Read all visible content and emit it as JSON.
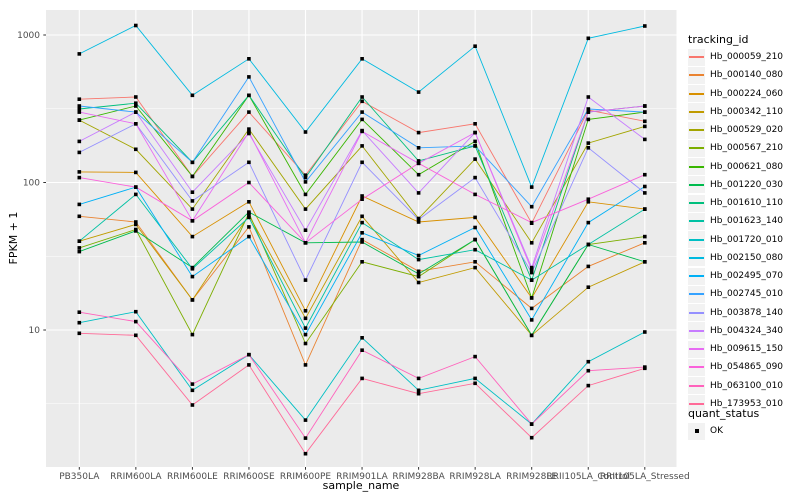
{
  "figure": {
    "panel_bg": "#EBEBEB",
    "grid_color": "#FFFFFF",
    "tick_label_color": "#4D4D4D",
    "point_color": "#000000"
  },
  "axes": {
    "y_title": "FPKM + 1",
    "x_title": "sample_name",
    "y_tick_labels": [
      "1000",
      "100",
      "10"
    ]
  },
  "legend": {
    "tracking_title": "tracking_id",
    "quant_title": "quant_status",
    "quant_items": [
      {
        "label": "OK",
        "marker": "black-filled-square"
      }
    ]
  },
  "chart_data": {
    "type": "line",
    "title": "",
    "xlabel": "sample_name",
    "ylabel": "FPKM + 1",
    "yscale": "log10",
    "ylim": [
      1.18,
      1480
    ],
    "y_major_gridlines": [
      10,
      100,
      1000
    ],
    "y_minor_gridlines": [
      3.162,
      31.62,
      316.2
    ],
    "grid": "on",
    "legend_position": "right",
    "point_marker": "small black filled square (quant_status = OK) at every sample",
    "categories": [
      "PB350LA",
      "RRIM600LA",
      "RRIM600LE",
      "RRIM600SE",
      "RRIM600PE",
      "RRIM901LA",
      "RRIM928BA",
      "RRIM928LA",
      "RRIM928LE",
      "RRII105LA_Control",
      "RRII105LA_Stressed"
    ],
    "series": [
      {
        "name": "Hb_000059_210",
        "color": "#F8766D",
        "values": [
          367,
          380,
          110,
          300,
          112,
          355,
          218,
          250,
          53,
          310,
          260
        ]
      },
      {
        "name": "Hb_000140_080",
        "color": "#EA8331",
        "values": [
          59,
          54,
          16,
          50,
          5.8,
          41,
          25,
          29,
          14,
          27,
          39
        ]
      },
      {
        "name": "Hb_000224_060",
        "color": "#D89000",
        "values": [
          118,
          117,
          43,
          74,
          13.5,
          81,
          54,
          58,
          16.5,
          74,
          66
        ]
      },
      {
        "name": "Hb_000342_110",
        "color": "#C09B00",
        "values": [
          40,
          52,
          16,
          60,
          12,
          59,
          21,
          26.5,
          9.2,
          19.5,
          29
        ]
      },
      {
        "name": "Hb_000529_020",
        "color": "#A3A500",
        "values": [
          265,
          168,
          66,
          230,
          66,
          177,
          57,
          144,
          39,
          185,
          240
        ]
      },
      {
        "name": "Hb_000567_210",
        "color": "#7CAE00",
        "values": [
          36,
          48,
          9.3,
          62,
          8.1,
          29,
          23,
          41,
          9.2,
          38,
          43
        ]
      },
      {
        "name": "Hb_000621_080",
        "color": "#39B600",
        "values": [
          265,
          330,
          110,
          390,
          83,
          268,
          113,
          190,
          16.5,
          268,
          300
        ]
      },
      {
        "name": "Hb_001220_030",
        "color": "#00BB4E",
        "values": [
          34,
          47,
          26.5,
          63,
          39,
          39.5,
          24,
          41,
          9.2,
          38,
          29
        ]
      },
      {
        "name": "Hb_001610_110",
        "color": "#00BF7D",
        "values": [
          315,
          345,
          137,
          390,
          108,
          380,
          140,
          177,
          21.8,
          300,
          330
        ]
      },
      {
        "name": "Hb_001623_140",
        "color": "#00C1A3",
        "values": [
          40,
          83,
          26,
          58,
          10.3,
          53.5,
          30,
          35,
          21.8,
          38,
          66
        ]
      },
      {
        "name": "Hb_001720_010",
        "color": "#00BFC4",
        "values": [
          11.2,
          13.3,
          3.9,
          6.8,
          2.45,
          8.85,
          3.9,
          4.7,
          2.3,
          6.1,
          9.7
        ]
      },
      {
        "name": "Hb_002150_080",
        "color": "#00BAE0",
        "values": [
          745,
          1160,
          390,
          690,
          220,
          690,
          410,
          840,
          93,
          950,
          1150
        ]
      },
      {
        "name": "Hb_002495_070",
        "color": "#00B0F6",
        "values": [
          71,
          93,
          23,
          43,
          9.3,
          45.6,
          32,
          49.5,
          11.7,
          53.5,
          94
        ]
      },
      {
        "name": "Hb_002745_010",
        "color": "#35A2FF",
        "values": [
          330,
          300,
          137,
          520,
          101,
          300,
          172,
          177,
          68.5,
          315,
          300
        ]
      },
      {
        "name": "Hb_003878_140",
        "color": "#9590FF",
        "values": [
          160,
          250,
          75,
          137,
          21.8,
          137,
          56,
          108,
          24.5,
          172,
          85
        ]
      },
      {
        "name": "Hb_004324_340",
        "color": "#C77CFF",
        "values": [
          190,
          300,
          86,
          215,
          47.5,
          225,
          85,
          218,
          26.5,
          380,
          196
        ]
      },
      {
        "name": "Hb_009615_150",
        "color": "#E76BF3",
        "values": [
          300,
          250,
          55,
          220,
          39,
          222,
          135,
          218,
          25.5,
          300,
          330
        ]
      },
      {
        "name": "Hb_054865_090",
        "color": "#FA62DB",
        "values": [
          108,
          93,
          55,
          100,
          39,
          77,
          135,
          83,
          53.5,
          77,
          113
        ]
      },
      {
        "name": "Hb_063100_010",
        "color": "#FF62BC",
        "values": [
          13.2,
          11.4,
          4.3,
          6.8,
          1.85,
          7.3,
          4.7,
          6.6,
          2.3,
          5.3,
          5.6
        ]
      },
      {
        "name": "Hb_173953_010",
        "color": "#FF6A98",
        "values": [
          9.5,
          9.2,
          3.1,
          5.8,
          1.45,
          4.7,
          3.7,
          4.35,
          1.86,
          4.2,
          5.5
        ]
      }
    ]
  }
}
